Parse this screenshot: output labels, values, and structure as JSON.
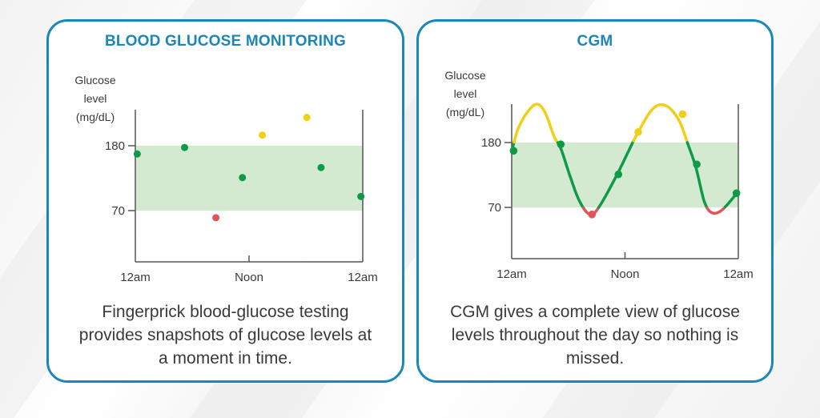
{
  "colors": {
    "brand": "#1a86b9",
    "in_range": "#0f9a47",
    "high": "#f2cf17",
    "low": "#e0545c",
    "target_band": "#d3ead0",
    "axis": "#555555",
    "text": "#3a3a3a"
  },
  "chart_data": [
    {
      "type": "scatter",
      "title": "BLOOD GLUCOSE MONITORING",
      "ylabel_lines": [
        "Glucose",
        "level",
        "(mg/dL)"
      ],
      "xlabel": "",
      "x_ticks": [
        {
          "hour": 0,
          "label": "12am"
        },
        {
          "hour": 12,
          "label": "Noon"
        },
        {
          "hour": 24,
          "label": "12am"
        }
      ],
      "y_ticks": [
        {
          "value": 180,
          "label": "180"
        },
        {
          "value": 70,
          "label": "70"
        }
      ],
      "xlim": [
        0,
        24
      ],
      "ylim": [
        -17,
        250
      ],
      "target_range": [
        70,
        180
      ],
      "points": [
        {
          "hour": 0.2,
          "value": 166,
          "status": "in_range"
        },
        {
          "hour": 5.2,
          "value": 177,
          "status": "in_range"
        },
        {
          "hour": 8.5,
          "value": 58,
          "status": "low"
        },
        {
          "hour": 11.3,
          "value": 126,
          "status": "in_range"
        },
        {
          "hour": 13.4,
          "value": 198,
          "status": "high"
        },
        {
          "hour": 18.1,
          "value": 228,
          "status": "high"
        },
        {
          "hour": 19.6,
          "value": 143,
          "status": "in_range"
        },
        {
          "hour": 23.8,
          "value": 94,
          "status": "in_range"
        }
      ],
      "caption": "Fingerprick blood-glucose testing provides snapshots of glucose levels at a moment in time."
    },
    {
      "type": "line",
      "title": "CGM",
      "ylabel_lines": [
        "Glucose",
        "level",
        "(mg/dL)"
      ],
      "xlabel": "",
      "x_ticks": [
        {
          "hour": 0,
          "label": "12am"
        },
        {
          "hour": 12,
          "label": "Noon"
        },
        {
          "hour": 24,
          "label": "12am"
        }
      ],
      "y_ticks": [
        {
          "value": 180,
          "label": "180"
        },
        {
          "value": 70,
          "label": "70"
        }
      ],
      "xlim": [
        0,
        24
      ],
      "ylim": [
        -17,
        250
      ],
      "target_range": [
        70,
        180
      ],
      "curve": [
        {
          "hour": 0.0,
          "value": 165
        },
        {
          "hour": 0.6,
          "value": 200
        },
        {
          "hour": 1.5,
          "value": 228
        },
        {
          "hour": 2.6,
          "value": 245
        },
        {
          "hour": 3.5,
          "value": 232
        },
        {
          "hour": 4.5,
          "value": 190
        },
        {
          "hour": 5.2,
          "value": 170
        },
        {
          "hour": 6.2,
          "value": 122
        },
        {
          "hour": 7.2,
          "value": 80
        },
        {
          "hour": 8.3,
          "value": 58
        },
        {
          "hour": 9.3,
          "value": 72
        },
        {
          "hour": 11.2,
          "value": 127
        },
        {
          "hour": 13.3,
          "value": 195
        },
        {
          "hour": 15.0,
          "value": 238
        },
        {
          "hour": 16.4,
          "value": 242
        },
        {
          "hour": 17.7,
          "value": 218
        },
        {
          "hour": 18.6,
          "value": 180
        },
        {
          "hour": 19.5,
          "value": 138
        },
        {
          "hour": 20.4,
          "value": 80
        },
        {
          "hour": 21.2,
          "value": 61
        },
        {
          "hour": 22.3,
          "value": 66
        },
        {
          "hour": 24.0,
          "value": 97
        }
      ],
      "markers": [
        {
          "hour": 0.2,
          "value": 166,
          "status": "in_range"
        },
        {
          "hour": 5.2,
          "value": 177,
          "status": "in_range"
        },
        {
          "hour": 8.5,
          "value": 58,
          "status": "low"
        },
        {
          "hour": 11.3,
          "value": 126,
          "status": "in_range"
        },
        {
          "hour": 13.4,
          "value": 198,
          "status": "high"
        },
        {
          "hour": 18.1,
          "value": 228,
          "status": "high"
        },
        {
          "hour": 19.6,
          "value": 143,
          "status": "in_range"
        },
        {
          "hour": 23.8,
          "value": 94,
          "status": "in_range"
        }
      ],
      "caption": "CGM gives a complete view of glucose levels throughout the day so nothing is missed."
    }
  ]
}
